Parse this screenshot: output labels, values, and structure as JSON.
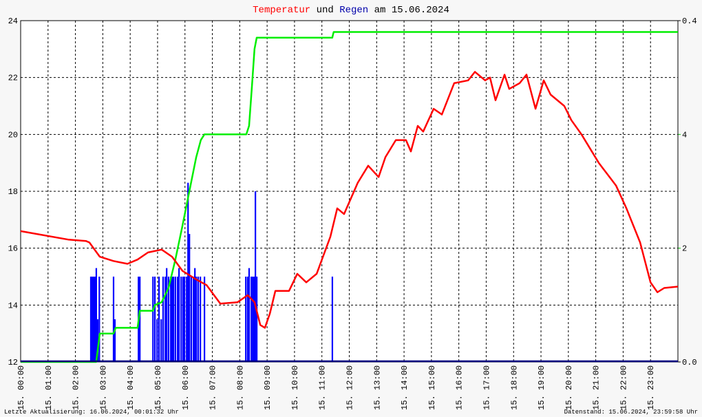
{
  "chart_data": {
    "type": "line",
    "title_mid": "und",
    "title_end": "am 15.06.2024",
    "footer_left": "Letzte Aktualisierung: 16.06.2024, 00:01:32 Uhr",
    "footer_right": "Datenstand: 15.06.2024, 23:59:58 Uhr",
    "grid": true,
    "xlim": [
      0,
      24
    ],
    "xticks": [
      {
        "value": 0,
        "label": "15. 00:00"
      },
      {
        "value": 1,
        "label": "15. 01:00"
      },
      {
        "value": 2,
        "label": "15. 02:00"
      },
      {
        "value": 3,
        "label": "15. 03:00"
      },
      {
        "value": 4,
        "label": "15. 04:00"
      },
      {
        "value": 5,
        "label": "15. 05:00"
      },
      {
        "value": 6,
        "label": "15. 06:00"
      },
      {
        "value": 7,
        "label": "15. 07:00"
      },
      {
        "value": 8,
        "label": "15. 08:00"
      },
      {
        "value": 9,
        "label": "15. 09:00"
      },
      {
        "value": 10,
        "label": "15. 10:00"
      },
      {
        "value": 11,
        "label": "15. 11:00"
      },
      {
        "value": 12,
        "label": "15. 12:00"
      },
      {
        "value": 13,
        "label": "15. 13:00"
      },
      {
        "value": 14,
        "label": "15. 14:00"
      },
      {
        "value": 15,
        "label": "15. 15:00"
      },
      {
        "value": 16,
        "label": "15. 16:00"
      },
      {
        "value": 17,
        "label": "15. 17:00"
      },
      {
        "value": 18,
        "label": "15. 18:00"
      },
      {
        "value": 19,
        "label": "15. 19:00"
      },
      {
        "value": 20,
        "label": "15. 20:00"
      },
      {
        "value": 21,
        "label": "15. 21:00"
      },
      {
        "value": 22,
        "label": "15. 22:00"
      },
      {
        "value": 23,
        "label": "15. 23:00"
      }
    ],
    "ylim": [
      12,
      24
    ],
    "yticks": [
      12,
      14,
      16,
      18,
      20,
      22,
      24
    ],
    "y2lim": [
      0,
      6
    ],
    "y2ticks": [
      2,
      4
    ],
    "y2color": "#00cc00",
    "y3lim": [
      0,
      0.4
    ],
    "y3ticks": [
      {
        "value": 0,
        "label": "0.0"
      },
      {
        "value": 0.4,
        "label": "0.4"
      }
    ],
    "series": [
      {
        "name": "Temperatur",
        "color": "#ff0000",
        "type": "line",
        "x": [
          0,
          1.76,
          2.39,
          2.51,
          2.89,
          3.39,
          3.9,
          4.27,
          4.65,
          5.15,
          5.53,
          5.91,
          6.41,
          6.79,
          7.29,
          7.92,
          8.29,
          8.54,
          8.75,
          8.92,
          9.1,
          9.3,
          9.8,
          10.1,
          10.43,
          10.81,
          11.31,
          11.56,
          11.81,
          12.31,
          12.69,
          13.07,
          13.32,
          13.7,
          14.07,
          14.25,
          14.5,
          14.7,
          15.08,
          15.38,
          15.83,
          16.34,
          16.59,
          16.96,
          17.14,
          17.34,
          17.67,
          17.84,
          18.22,
          18.47,
          18.8,
          19.1,
          19.35,
          19.85,
          20.11,
          20.48,
          21.11,
          21.74,
          22.12,
          22.62,
          23.0,
          23.25,
          23.5,
          24
        ],
        "values": [
          16.6,
          16.3,
          16.25,
          16.2,
          15.7,
          15.55,
          15.45,
          15.6,
          15.85,
          15.95,
          15.7,
          15.2,
          14.9,
          14.7,
          14.05,
          14.1,
          14.35,
          14.1,
          13.3,
          13.2,
          13.7,
          14.5,
          14.5,
          15.1,
          14.8,
          15.1,
          16.4,
          17.4,
          17.2,
          18.3,
          18.9,
          18.5,
          19.2,
          19.8,
          19.8,
          19.4,
          20.3,
          20.1,
          20.9,
          20.7,
          21.8,
          21.9,
          22.2,
          21.9,
          22.0,
          21.2,
          22.1,
          21.6,
          21.8,
          22.1,
          20.9,
          21.9,
          21.4,
          21.0,
          20.5,
          20.0,
          19.0,
          18.2,
          17.4,
          16.2,
          14.8,
          14.45,
          14.6,
          14.65
        ]
      },
      {
        "name": "Regen",
        "color": "#0000ff",
        "type": "bar",
        "axis": "y3",
        "x": [
          2.56,
          2.61,
          2.66,
          2.71,
          2.76,
          2.81,
          2.87,
          3.39,
          3.44,
          4.3,
          4.35,
          4.83,
          4.9,
          4.98,
          5.05,
          5.13,
          5.2,
          5.28,
          5.33,
          5.4,
          5.48,
          5.53,
          5.58,
          5.65,
          5.73,
          5.78,
          5.86,
          5.93,
          5.98,
          6.06,
          6.11,
          6.16,
          6.23,
          6.31,
          6.36,
          6.41,
          6.48,
          6.56,
          6.71,
          8.22,
          8.29,
          8.34,
          8.42,
          8.47,
          8.52,
          8.57,
          8.62,
          11.38
        ],
        "values": [
          0.1,
          0.1,
          0.1,
          0.1,
          0.11,
          0.05,
          0.1,
          0.1,
          0.05,
          0.1,
          0.1,
          0.1,
          0.1,
          0.05,
          0.1,
          0.05,
          0.1,
          0.1,
          0.11,
          0.1,
          0.1,
          0.1,
          0.1,
          0.1,
          0.1,
          0.11,
          0.1,
          0.1,
          0.1,
          0.1,
          0.21,
          0.15,
          0.1,
          0.1,
          0.11,
          0.1,
          0.1,
          0.1,
          0.1,
          0.1,
          0.1,
          0.11,
          0.1,
          0.1,
          0.1,
          0.2,
          0.1,
          0.1
        ]
      },
      {
        "color": "#00ee00",
        "type": "line",
        "axis": "y2",
        "x": [
          0,
          2.76,
          2.89,
          3.39,
          3.47,
          4.27,
          4.35,
          4.83,
          4.9,
          5.15,
          5.4,
          5.65,
          5.91,
          6.16,
          6.41,
          6.58,
          6.71,
          8.24,
          8.34,
          8.44,
          8.54,
          8.62,
          11.38,
          11.43,
          24
        ],
        "values": [
          0,
          0,
          0.5,
          0.5,
          0.6,
          0.6,
          0.9,
          0.9,
          1.0,
          1.05,
          1.3,
          1.8,
          2.4,
          3.0,
          3.6,
          3.9,
          4.0,
          4.0,
          4.15,
          4.8,
          5.5,
          5.7,
          5.7,
          5.8,
          5.8
        ]
      }
    ]
  }
}
